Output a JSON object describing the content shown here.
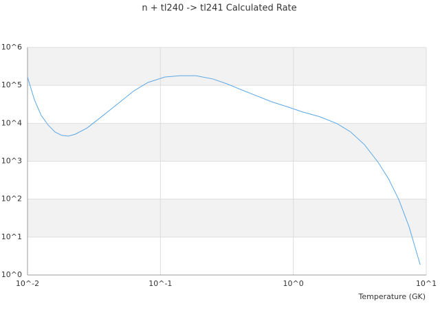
{
  "chart_data": {
    "type": "line",
    "title": "n + tl240 -> tl241 Calculated Rate",
    "x_label": "Temperature (GK)",
    "log_x": true,
    "log_y": true,
    "grid": true,
    "band_color": "#f2f2f2",
    "x": [
      0.01,
      0.01126,
      0.0127,
      0.0143,
      0.0161,
      0.0181,
      0.0204,
      0.023,
      0.0282,
      0.037,
      0.0499,
      0.0633,
      0.0804,
      0.108,
      0.1406,
      0.185,
      0.249,
      0.316,
      0.401,
      0.509,
      0.686,
      0.924,
      1.17,
      1.58,
      2.13,
      2.7,
      3.42,
      4.34,
      5.2,
      6.21,
      7.43,
      9.0
    ],
    "series": [
      {
        "color": "#5aa7e6",
        "values": [
          166000,
          42000,
          16000,
          9000,
          5900,
          4800,
          4600,
          5200,
          7600,
          16000,
          37000,
          72000,
          119000,
          166000,
          180000,
          180000,
          147000,
          110000,
          78000,
          56000,
          37000,
          26500,
          20000,
          14900,
          9800,
          5900,
          2760,
          940,
          345,
          98,
          18.6,
          1.87
        ]
      }
    ],
    "xlim": [
      0.01,
      10
    ],
    "ylim": [
      1,
      1000000
    ],
    "xticks": [
      {
        "value": 0.01,
        "label": "10^-2"
      },
      {
        "value": 0.1,
        "label": "10^-1"
      },
      {
        "value": 1,
        "label": "10^0"
      },
      {
        "value": 10,
        "label": "10^1"
      }
    ],
    "yticks": [
      {
        "value": 1,
        "label": "10^0"
      },
      {
        "value": 10,
        "label": "10^1"
      },
      {
        "value": 100,
        "label": "10^2"
      },
      {
        "value": 1000,
        "label": "10^3"
      },
      {
        "value": 10000,
        "label": "10^4"
      },
      {
        "value": 100000,
        "label": "10^5"
      },
      {
        "value": 1000000,
        "label": "10^6"
      }
    ]
  }
}
